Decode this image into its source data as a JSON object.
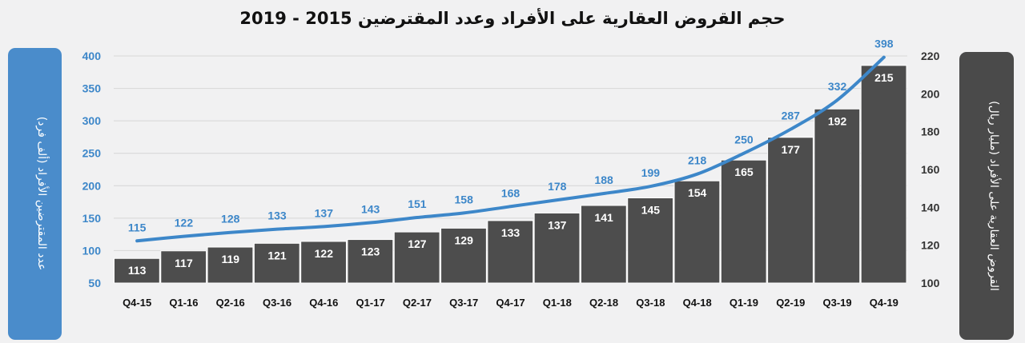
{
  "chart_data": {
    "type": "bar+line",
    "title": "حجم القروض العقارية على الأفراد وعدد المقترضين 2015 - 2019",
    "categories": [
      "Q4-15",
      "Q1-16",
      "Q2-16",
      "Q3-16",
      "Q4-16",
      "Q1-17",
      "Q2-17",
      "Q3-17",
      "Q4-17",
      "Q1-18",
      "Q2-18",
      "Q3-18",
      "Q4-18",
      "Q1-19",
      "Q2-19",
      "Q3-19",
      "Q4-19"
    ],
    "series": [
      {
        "name": "القروض العقارية على الأفراد (مليار ريال)",
        "type": "bar",
        "axis": "right",
        "color": "#4d4d4d",
        "values": [
          113,
          117,
          119,
          121,
          122,
          123,
          127,
          129,
          133,
          137,
          141,
          145,
          154,
          165,
          177,
          192,
          215
        ]
      },
      {
        "name": "عدد المقترضين الأفراد (ألف فرد)",
        "type": "line",
        "axis": "left",
        "color": "#3d87c9",
        "values": [
          115,
          122,
          128,
          133,
          137,
          143,
          151,
          158,
          168,
          178,
          188,
          199,
          218,
          250,
          287,
          332,
          398
        ]
      }
    ],
    "y_left": {
      "label": "عدد المقترضين الأفراد (ألف فرد)",
      "range": [
        50,
        400
      ],
      "ticks": [
        50,
        100,
        150,
        200,
        250,
        300,
        350,
        400
      ]
    },
    "y_right": {
      "label": "القروض العقارية على الأفراد (مليار ريال)",
      "range": [
        100,
        220
      ],
      "ticks": [
        100,
        120,
        140,
        160,
        180,
        200,
        220
      ]
    },
    "grid": true,
    "colors": {
      "left_panel": "#4a8ccb",
      "right_panel": "#4a4a4a",
      "line": "#3d87c9",
      "bars": "#4d4d4d"
    }
  }
}
